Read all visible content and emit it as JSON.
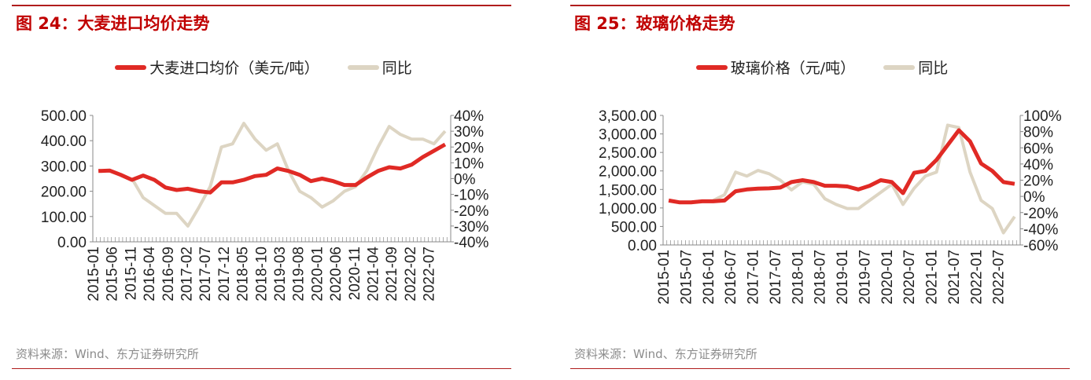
{
  "colors": {
    "price": "#e02a25",
    "yoy": "#ddd5c3",
    "accent": "#c00000"
  },
  "chart_data": [
    {
      "type": "line",
      "title": "图 24：大麦进口均价走势",
      "source": "资料来源：Wind、东方证券研究所",
      "x_tick_labels": [
        "2015-01",
        "2015-06",
        "2015-11",
        "2016-04",
        "2016-09",
        "2017-02",
        "2017-07",
        "2017-12",
        "2018-05",
        "2018-10",
        "2019-03",
        "2019-08",
        "2020-01",
        "2020-06",
        "2020-11",
        "2021-04",
        "2021-09",
        "2022-02",
        "2022-07"
      ],
      "x_range": [
        "2015-01",
        "2022-12"
      ],
      "x": [
        "2015Q1",
        "2015Q2",
        "2015Q3",
        "2015Q4",
        "2016Q1",
        "2016Q2",
        "2016Q3",
        "2016Q4",
        "2017Q1",
        "2017Q2",
        "2017Q3",
        "2017Q4",
        "2018Q1",
        "2018Q2",
        "2018Q3",
        "2018Q4",
        "2019Q1",
        "2019Q2",
        "2019Q3",
        "2019Q4",
        "2020Q1",
        "2020Q2",
        "2020Q3",
        "2020Q4",
        "2021Q1",
        "2021Q2",
        "2021Q3",
        "2021Q4",
        "2022Q1",
        "2022Q2",
        "2022Q3",
        "2022Q4"
      ],
      "y_left": {
        "min": 0,
        "max": 500,
        "ticks": [
          "0.00",
          "100.00",
          "200.00",
          "300.00",
          "400.00",
          "500.00"
        ]
      },
      "y_right": {
        "min": -40,
        "max": 40,
        "ticks": [
          "-40%",
          "-30%",
          "-20%",
          "-10%",
          "0%",
          "10%",
          "20%",
          "30%",
          "40%"
        ]
      },
      "legend_position": "top",
      "grid": false,
      "series": [
        {
          "name": "大麦进口均价（美元/吨）",
          "axis": "left",
          "values": [
            280,
            282,
            265,
            245,
            262,
            245,
            215,
            205,
            210,
            200,
            195,
            235,
            235,
            245,
            260,
            265,
            290,
            280,
            265,
            240,
            250,
            240,
            225,
            225,
            255,
            280,
            295,
            290,
            305,
            335,
            360,
            385
          ]
        },
        {
          "name": "同比",
          "axis": "right",
          "values": [
            null,
            null,
            null,
            0,
            -12,
            -17,
            -22,
            -22,
            -30,
            -18,
            -5,
            20,
            22,
            35,
            25,
            18,
            22,
            5,
            -8,
            -12,
            -18,
            -14,
            -8,
            -5,
            5,
            20,
            33,
            28,
            25,
            25,
            22,
            30
          ]
        }
      ]
    },
    {
      "type": "line",
      "title": "图 25：玻璃价格走势",
      "source": "资料来源：Wind、东方证券研究所",
      "x_tick_labels": [
        "2015-01",
        "2015-07",
        "2016-01",
        "2016-07",
        "2017-01",
        "2017-07",
        "2018-01",
        "2018-07",
        "2019-01",
        "2019-07",
        "2020-01",
        "2020-07",
        "2021-01",
        "2021-07",
        "2022-01",
        "2022-07"
      ],
      "x_range": [
        "2015-01",
        "2022-12"
      ],
      "x": [
        "2015Q1",
        "2015Q2",
        "2015Q3",
        "2015Q4",
        "2016Q1",
        "2016Q2",
        "2016Q3",
        "2016Q4",
        "2017Q1",
        "2017Q2",
        "2017Q3",
        "2017Q4",
        "2018Q1",
        "2018Q2",
        "2018Q3",
        "2018Q4",
        "2019Q1",
        "2019Q2",
        "2019Q3",
        "2019Q4",
        "2020Q1",
        "2020Q2",
        "2020Q3",
        "2020Q4",
        "2021Q1",
        "2021Q2",
        "2021Q3",
        "2021Q4",
        "2022Q1",
        "2022Q2",
        "2022Q3",
        "2022Q4"
      ],
      "y_left": {
        "min": 0,
        "max": 3500,
        "ticks": [
          "0.00",
          "500.00",
          "1,000.00",
          "1,500.00",
          "2,000.00",
          "2,500.00",
          "3,000.00",
          "3,500.00"
        ]
      },
      "y_right": {
        "min": -60,
        "max": 100,
        "ticks": [
          "-60%",
          "-40%",
          "-20%",
          "0%",
          "20%",
          "40%",
          "60%",
          "80%",
          "100%"
        ]
      },
      "legend_position": "top",
      "grid": false,
      "series": [
        {
          "name": "玻璃价格（元/吨）",
          "axis": "left",
          "values": [
            1200,
            1150,
            1150,
            1180,
            1180,
            1200,
            1450,
            1500,
            1520,
            1530,
            1550,
            1700,
            1750,
            1700,
            1600,
            1600,
            1580,
            1500,
            1600,
            1750,
            1700,
            1400,
            1950,
            2000,
            2300,
            2700,
            3100,
            2800,
            2200,
            2000,
            1700,
            1650
          ]
        },
        {
          "name": "同比",
          "axis": "right",
          "values": [
            null,
            null,
            null,
            null,
            -5,
            2,
            30,
            25,
            32,
            28,
            20,
            8,
            18,
            15,
            -3,
            -10,
            -15,
            -15,
            -5,
            5,
            15,
            -10,
            10,
            25,
            30,
            88,
            85,
            30,
            -5,
            -15,
            -45,
            -25
          ]
        }
      ]
    }
  ]
}
